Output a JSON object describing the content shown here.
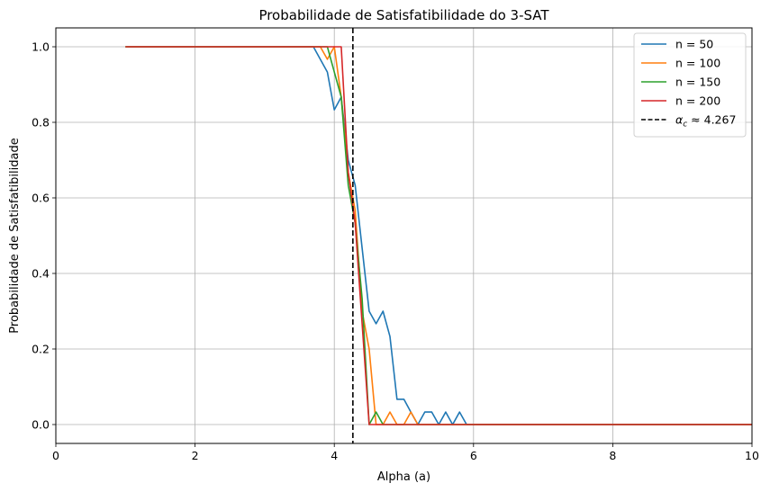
{
  "chart_data": {
    "type": "line",
    "title": "Probabilidade de Satisfatibilidade do 3-SAT",
    "xlabel": "Alpha (a)",
    "ylabel": "Probabilidade de Satisfatibilidade",
    "xlim": [
      0,
      10
    ],
    "ylim": [
      -0.05,
      1.05
    ],
    "xticks": [
      0,
      2,
      4,
      6,
      8,
      10
    ],
    "yticks": [
      0.0,
      0.2,
      0.4,
      0.6,
      0.8,
      1.0
    ],
    "xtick_labels": [
      "0",
      "2",
      "4",
      "6",
      "8",
      "10"
    ],
    "ytick_labels": [
      "0.0",
      "0.2",
      "0.4",
      "0.6",
      "0.8",
      "1.0"
    ],
    "grid": true,
    "legend_position": "top-right",
    "series": [
      {
        "name": "n = 50",
        "color": "#1f77b4",
        "x": [
          1.0,
          3.7,
          3.9,
          4.0,
          4.1,
          4.2,
          4.3,
          4.4,
          4.5,
          4.6,
          4.7,
          4.8,
          4.9,
          5.0,
          5.1,
          5.2,
          5.3,
          5.4,
          5.5,
          5.6,
          5.7,
          5.8,
          5.9,
          10.0
        ],
        "values": [
          1.0,
          1.0,
          0.933,
          0.833,
          0.867,
          0.7,
          0.633,
          0.467,
          0.3,
          0.267,
          0.3,
          0.233,
          0.067,
          0.067,
          0.033,
          0.0,
          0.033,
          0.033,
          0.0,
          0.033,
          0.0,
          0.033,
          0.0,
          0.0
        ]
      },
      {
        "name": "n = 100",
        "color": "#ff7f0e",
        "x": [
          1.0,
          3.8,
          3.9,
          4.0,
          4.1,
          4.2,
          4.3,
          4.4,
          4.5,
          4.6,
          4.7,
          4.8,
          4.9,
          5.0,
          5.1,
          5.2,
          10.0
        ],
        "values": [
          1.0,
          1.0,
          0.967,
          1.0,
          0.867,
          0.667,
          0.567,
          0.3,
          0.2,
          0.0,
          0.0,
          0.033,
          0.0,
          0.0,
          0.033,
          0.0,
          0.0
        ]
      },
      {
        "name": "n = 150",
        "color": "#2ca02c",
        "x": [
          1.0,
          3.9,
          4.0,
          4.1,
          4.2,
          4.3,
          4.4,
          4.5,
          4.6,
          4.7,
          10.0
        ],
        "values": [
          1.0,
          1.0,
          0.933,
          0.867,
          0.633,
          0.533,
          0.333,
          0.0,
          0.033,
          0.0,
          0.0
        ]
      },
      {
        "name": "n = 200",
        "color": "#d62728",
        "x": [
          1.0,
          4.1,
          4.2,
          4.3,
          4.4,
          4.5,
          10.0
        ],
        "values": [
          1.0,
          1.0,
          0.667,
          0.533,
          0.267,
          0.0,
          0.0
        ]
      }
    ],
    "reference_line": {
      "label_symbol": "α",
      "label_subscript": "c",
      "label_rest": " ≈ 4.267",
      "x": 4.267,
      "style": "dashed",
      "color": "#000000"
    }
  }
}
